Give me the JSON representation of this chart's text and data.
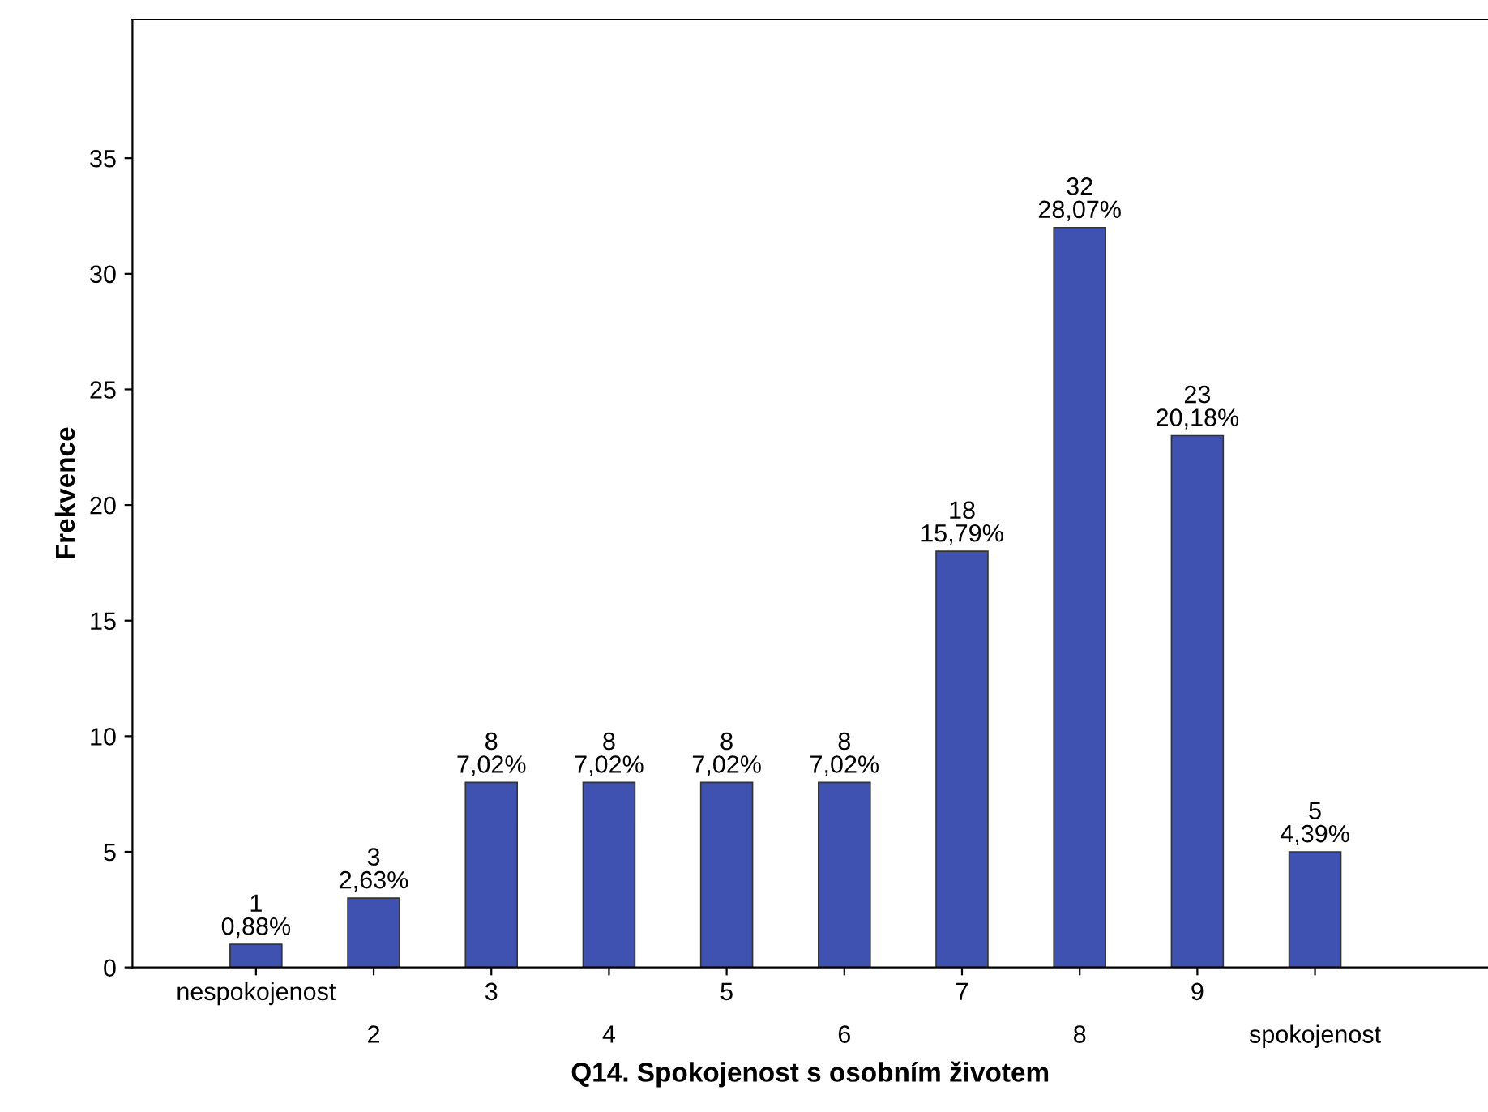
{
  "chart_data": {
    "type": "bar",
    "xlabel": "Q14. Spokojenost s osobním životem",
    "ylabel": "Frekvence",
    "categories": [
      "nespokojenost",
      "2",
      "3",
      "4",
      "5",
      "6",
      "7",
      "8",
      "9",
      "spokojenost"
    ],
    "values": [
      1,
      3,
      8,
      8,
      8,
      8,
      18,
      32,
      23,
      5
    ],
    "value_labels": [
      "1\n0,88%",
      "3\n2,63%",
      "8\n7,02%",
      "8\n7,02%",
      "8\n7,02%",
      "8\n7,02%",
      "18\n15,79%",
      "32\n28,07%",
      "23\n20,18%",
      "5\n4,39%"
    ],
    "color": "#3f51b1",
    "ylim": [
      0,
      41
    ],
    "yticks": [
      0,
      5,
      10,
      15,
      20,
      25,
      30,
      35
    ],
    "grid": false,
    "legend": false
  }
}
